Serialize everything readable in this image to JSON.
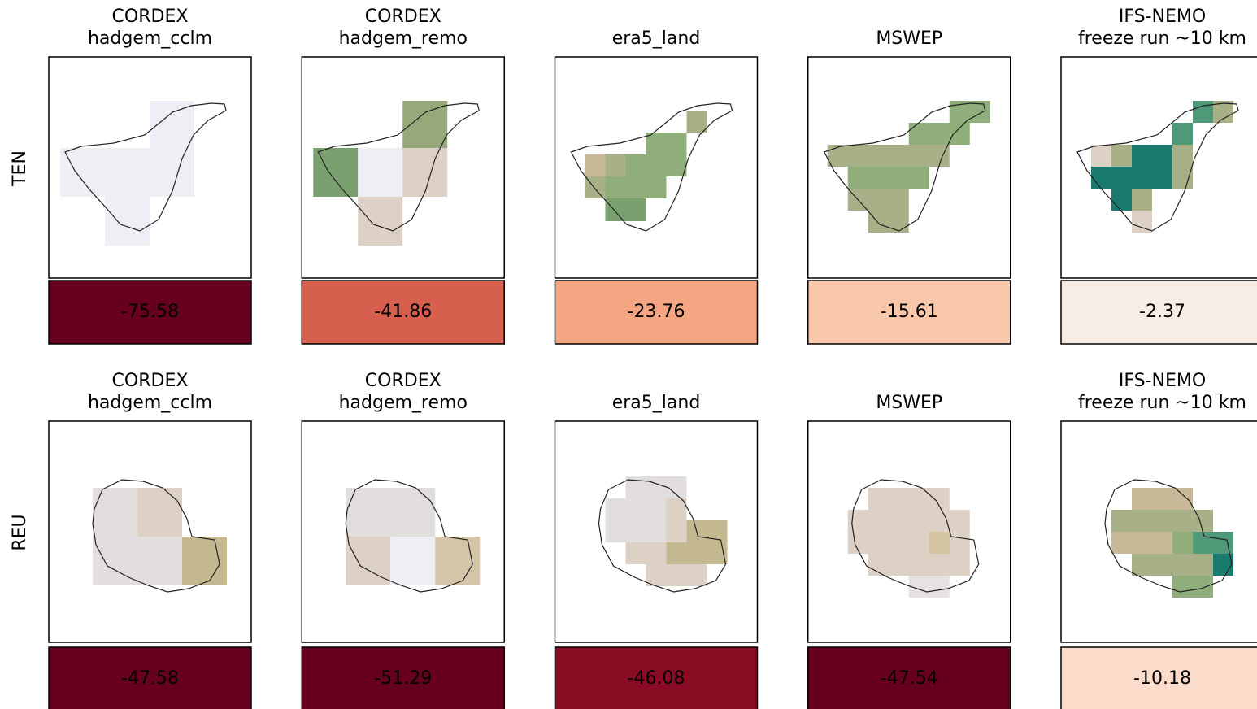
{
  "rows": [
    {
      "label": "TEN",
      "panels": [
        {
          "title": [
            "CORDEX",
            "hadgem_cclm"
          ],
          "value": -75.58,
          "value_color": "#67001f"
        },
        {
          "title": [
            "CORDEX",
            "hadgem_remo"
          ],
          "value": -41.86,
          "value_color": "#d6604d"
        },
        {
          "title": [
            "era5_land"
          ],
          "value": -23.76,
          "value_color": "#f4a582"
        },
        {
          "title": [
            "MSWEP"
          ],
          "value": -15.61,
          "value_color": "#f8c6a8"
        },
        {
          "title": [
            "IFS-NEMO",
            "freeze run ~10 km"
          ],
          "value": -2.37,
          "value_color": "#f8ece6"
        }
      ]
    },
    {
      "label": "REU",
      "panels": [
        {
          "title": [
            "CORDEX",
            "hadgem_cclm"
          ],
          "value": -47.58,
          "value_color": "#67001f"
        },
        {
          "title": [
            "CORDEX",
            "hadgem_remo"
          ],
          "value": -51.29,
          "value_color": "#67001f"
        },
        {
          "title": [
            "era5_land"
          ],
          "value": -46.08,
          "value_color": "#8a0c24"
        },
        {
          "title": [
            "MSWEP"
          ],
          "value": -47.54,
          "value_color": "#67001f"
        },
        {
          "title": [
            "IFS-NEMO",
            "freeze run ~10 km"
          ],
          "value": -10.18,
          "value_color": "#fbdcca"
        }
      ]
    }
  ]
}
